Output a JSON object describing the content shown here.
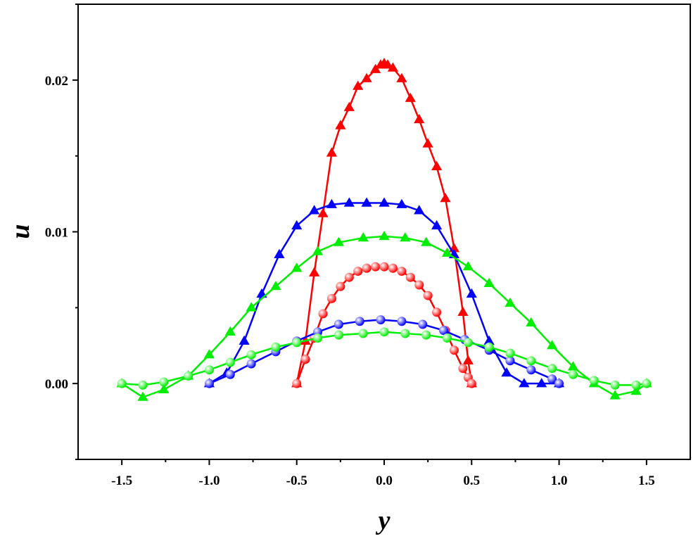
{
  "chart_data": {
    "type": "line",
    "xlabel": "y",
    "ylabel": "u",
    "xlim": [
      -1.75,
      1.75
    ],
    "ylim": [
      -0.005,
      0.025
    ],
    "x_ticks": [
      -1.5,
      -1.0,
      -0.5,
      0.0,
      0.5,
      1.0,
      1.5
    ],
    "x_tick_labels": [
      "-1.5",
      "-1.0",
      "-0.5",
      "0.0",
      "0.5",
      "1.0",
      "1.5"
    ],
    "y_ticks": [
      0.0,
      0.01,
      0.02
    ],
    "y_tick_labels": [
      "0.00",
      "0.01",
      "0.02"
    ],
    "grid": false,
    "legend": "none",
    "series": [
      {
        "color": "#ff0000",
        "marker": "triangle",
        "halfwidth": 0.5,
        "peak": 0.0211,
        "x": [
          -0.5,
          -0.45,
          -0.4,
          -0.35,
          -0.3,
          -0.25,
          -0.2,
          -0.15,
          -0.1,
          -0.05,
          -0.02,
          0.0,
          0.02,
          0.05,
          0.1,
          0.15,
          0.2,
          0.25,
          0.3,
          0.35,
          0.4,
          0.45,
          0.48,
          0.5
        ],
        "y": [
          0.0,
          0.0028,
          0.0073,
          0.0112,
          0.0152,
          0.017,
          0.0182,
          0.0196,
          0.0201,
          0.0207,
          0.021,
          0.0211,
          0.021,
          0.0208,
          0.0201,
          0.0188,
          0.0174,
          0.0158,
          0.0143,
          0.0122,
          0.0089,
          0.0047,
          0.0015,
          0.0
        ]
      },
      {
        "color": "#ff0000",
        "marker": "sphere",
        "halfwidth": 0.5,
        "peak": 0.0077,
        "x": [
          -0.5,
          -0.45,
          -0.4,
          -0.35,
          -0.3,
          -0.25,
          -0.2,
          -0.15,
          -0.1,
          -0.05,
          0.0,
          0.05,
          0.1,
          0.15,
          0.2,
          0.25,
          0.3,
          0.35,
          0.4,
          0.45,
          0.48,
          0.5
        ],
        "y": [
          0.0,
          0.0016,
          0.003,
          0.0046,
          0.0056,
          0.0064,
          0.007,
          0.0074,
          0.0076,
          0.0077,
          0.0077,
          0.0076,
          0.0074,
          0.007,
          0.0065,
          0.0058,
          0.0047,
          0.0035,
          0.0022,
          0.001,
          0.0004,
          0.0
        ]
      },
      {
        "color": "#0000ff",
        "marker": "triangle",
        "halfwidth": 1.0,
        "peak": 0.0119,
        "x": [
          -1.0,
          -0.9,
          -0.8,
          -0.7,
          -0.6,
          -0.5,
          -0.4,
          -0.3,
          -0.2,
          -0.1,
          0.0,
          0.1,
          0.2,
          0.3,
          0.4,
          0.5,
          0.6,
          0.7,
          0.8,
          0.9,
          1.0
        ],
        "y": [
          0.0,
          0.0007,
          0.0028,
          0.0059,
          0.0085,
          0.0104,
          0.0114,
          0.0118,
          0.0119,
          0.0119,
          0.0119,
          0.0118,
          0.0114,
          0.0104,
          0.0085,
          0.0059,
          0.0028,
          0.0007,
          0.0,
          0.0,
          0.0
        ]
      },
      {
        "color": "#0000ff",
        "marker": "sphere",
        "halfwidth": 1.0,
        "peak": 0.0042,
        "x": [
          -1.0,
          -0.88,
          -0.76,
          -0.62,
          -0.5,
          -0.38,
          -0.26,
          -0.14,
          -0.02,
          0.1,
          0.22,
          0.34,
          0.46,
          0.6,
          0.72,
          0.84,
          0.96,
          1.0
        ],
        "y": [
          0.0,
          0.0006,
          0.0013,
          0.0021,
          0.0028,
          0.0034,
          0.0039,
          0.0041,
          0.0042,
          0.0041,
          0.0039,
          0.0035,
          0.0029,
          0.0022,
          0.0015,
          0.0009,
          0.0003,
          0.0
        ]
      },
      {
        "color": "#00ee00",
        "marker": "triangle",
        "halfwidth": 1.5,
        "peak": 0.0097,
        "x": [
          -1.5,
          -1.38,
          -1.26,
          -1.12,
          -1.0,
          -0.88,
          -0.76,
          -0.62,
          -0.5,
          -0.38,
          -0.26,
          -0.12,
          0.0,
          0.12,
          0.24,
          0.36,
          0.48,
          0.6,
          0.72,
          0.84,
          0.96,
          1.08,
          1.2,
          1.32,
          1.44,
          1.5
        ],
        "y": [
          0.0,
          -0.0009,
          -0.0004,
          0.0005,
          0.0019,
          0.0034,
          0.005,
          0.0064,
          0.0076,
          0.0087,
          0.0093,
          0.0096,
          0.0097,
          0.0096,
          0.0093,
          0.0086,
          0.0077,
          0.0066,
          0.0053,
          0.004,
          0.0025,
          0.0011,
          0.0,
          -0.0008,
          -0.0005,
          0.0
        ]
      },
      {
        "color": "#00ee00",
        "marker": "sphere",
        "halfwidth": 1.5,
        "peak": 0.0034,
        "x": [
          -1.5,
          -1.38,
          -1.26,
          -1.12,
          -1.0,
          -0.88,
          -0.76,
          -0.62,
          -0.5,
          -0.38,
          -0.26,
          -0.12,
          0.0,
          0.12,
          0.24,
          0.36,
          0.48,
          0.6,
          0.72,
          0.84,
          0.96,
          1.08,
          1.2,
          1.32,
          1.44,
          1.5
        ],
        "y": [
          0.0,
          -0.0001,
          0.0001,
          0.0005,
          0.0009,
          0.0014,
          0.0019,
          0.0024,
          0.0027,
          0.003,
          0.0032,
          0.0033,
          0.0034,
          0.0033,
          0.0032,
          0.003,
          0.0027,
          0.0024,
          0.002,
          0.0015,
          0.001,
          0.0006,
          0.0002,
          -0.0001,
          -0.0001,
          0.0
        ]
      }
    ]
  }
}
